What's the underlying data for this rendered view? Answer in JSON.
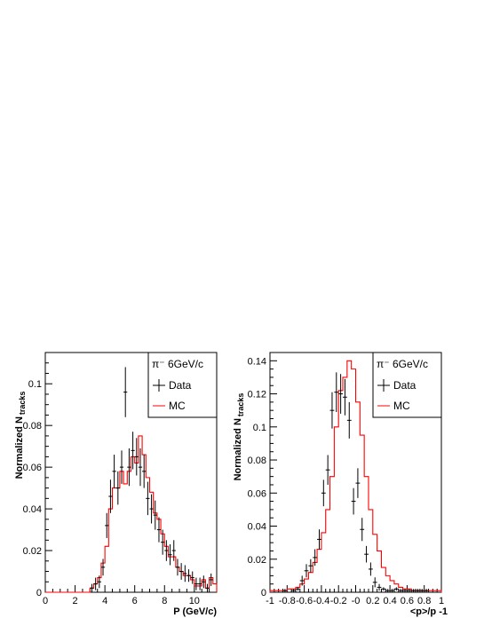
{
  "chart_data": [
    {
      "type": "histogram",
      "title": "",
      "xlabel": "P (GeV/c)",
      "ylabel": "Normalized N",
      "ylabel_sub": "tracks",
      "xlim": [
        0,
        11.5
      ],
      "ylim": [
        0,
        0.115
      ],
      "xticks": [
        0,
        2,
        4,
        6,
        8,
        10
      ],
      "yticks": [
        0,
        0.02,
        0.04,
        0.06,
        0.08,
        0.1
      ],
      "xtick_labels": [
        "0",
        "2",
        "4",
        "6",
        "8",
        "10"
      ],
      "ytick_labels": [
        "0",
        "0.02",
        "0.04",
        "0.06",
        "0.08",
        "0.1"
      ],
      "bin_width": 0.25,
      "legend": {
        "title": "π⁻ 6GeV/c",
        "placement": "top-right",
        "entries": [
          {
            "label": "Data",
            "style": "errorbar",
            "color": "#000000"
          },
          {
            "label": "MC",
            "style": "line",
            "color": "#ff0000"
          }
        ]
      },
      "series": [
        {
          "name": "Data",
          "style": "errorbar",
          "color": "#000000",
          "x": [
            3.125,
            3.375,
            3.625,
            3.875,
            4.125,
            4.375,
            4.625,
            4.875,
            5.125,
            5.375,
            5.625,
            5.875,
            6.125,
            6.375,
            6.625,
            6.875,
            7.125,
            7.375,
            7.625,
            7.875,
            8.125,
            8.375,
            8.625,
            8.875,
            9.125,
            9.375,
            9.625,
            9.875,
            10.125,
            10.375,
            10.625,
            10.875,
            11.125
          ],
          "y": [
            0.002,
            0.004,
            0.005,
            0.012,
            0.032,
            0.046,
            0.058,
            0.05,
            0.06,
            0.096,
            0.06,
            0.068,
            0.065,
            0.06,
            0.058,
            0.045,
            0.04,
            0.037,
            0.03,
            0.024,
            0.02,
            0.018,
            0.02,
            0.012,
            0.01,
            0.009,
            0.008,
            0.007,
            0.004,
            0.004,
            0.005,
            0.002,
            0.006
          ],
          "yerr": [
            0.002,
            0.003,
            0.003,
            0.004,
            0.006,
            0.008,
            0.008,
            0.008,
            0.008,
            0.012,
            0.009,
            0.009,
            0.009,
            0.009,
            0.008,
            0.008,
            0.007,
            0.007,
            0.006,
            0.006,
            0.005,
            0.005,
            0.005,
            0.004,
            0.004,
            0.004,
            0.003,
            0.003,
            0.003,
            0.003,
            0.003,
            0.002,
            0.003
          ]
        },
        {
          "name": "MC",
          "style": "step",
          "color": "#ff0000",
          "bin_edges": [
            3.0,
            3.25,
            3.5,
            3.75,
            4.0,
            4.25,
            4.5,
            4.75,
            5.0,
            5.25,
            5.5,
            5.75,
            6.0,
            6.25,
            6.5,
            6.75,
            7.0,
            7.25,
            7.5,
            7.75,
            8.0,
            8.25,
            8.5,
            8.75,
            9.0,
            9.25,
            9.5,
            9.75,
            10.0,
            10.25,
            10.5,
            10.75,
            11.0,
            11.25,
            11.5
          ],
          "values": [
            0.002,
            0.004,
            0.007,
            0.014,
            0.022,
            0.04,
            0.05,
            0.05,
            0.058,
            0.052,
            0.058,
            0.065,
            0.062,
            0.075,
            0.066,
            0.055,
            0.048,
            0.038,
            0.035,
            0.028,
            0.022,
            0.017,
            0.017,
            0.012,
            0.01,
            0.008,
            0.008,
            0.006,
            0.003,
            0.003,
            0.006,
            0.002,
            0.007,
            0.004
          ]
        }
      ]
    },
    {
      "type": "histogram",
      "title": "",
      "xlabel": "<p>/p -1",
      "ylabel": "Normalized N",
      "ylabel_sub": "tracks",
      "xlim": [
        -1,
        1
      ],
      "ylim": [
        0,
        0.145
      ],
      "xticks": [
        -1,
        -0.8,
        -0.6,
        -0.4,
        -0.2,
        0,
        0.2,
        0.4,
        0.6,
        0.8,
        1
      ],
      "yticks": [
        0,
        0.02,
        0.04,
        0.06,
        0.08,
        0.1,
        0.12,
        0.14
      ],
      "xtick_labels": [
        "-1",
        "-0.8",
        "-0.6",
        "-0.4",
        "-0.2",
        "-0",
        "0.2",
        "0.4",
        "0.6",
        "0.8",
        "1"
      ],
      "ytick_labels": [
        "0",
        "0.02",
        "0.04",
        "0.06",
        "0.08",
        "0.1",
        "0.12",
        "0.14"
      ],
      "bin_width": 0.05,
      "legend": {
        "title": "π⁻ 6GeV/c",
        "placement": "top-right",
        "entries": [
          {
            "label": "Data",
            "style": "errorbar",
            "color": "#000000"
          },
          {
            "label": "MC",
            "style": "line",
            "color": "#ff0000"
          }
        ]
      },
      "series": [
        {
          "name": "Data",
          "style": "errorbar",
          "color": "#000000",
          "x": [
            -0.825,
            -0.725,
            -0.675,
            -0.625,
            -0.575,
            -0.525,
            -0.475,
            -0.425,
            -0.375,
            -0.325,
            -0.275,
            -0.225,
            -0.175,
            -0.125,
            -0.075,
            -0.025,
            0.025,
            0.075,
            0.125,
            0.175,
            0.225,
            0.275,
            0.325,
            0.375,
            0.425,
            0.475,
            0.525,
            0.575,
            0.625,
            0.675,
            0.725,
            0.775,
            0.825
          ],
          "y": [
            0.001,
            0.001,
            0.002,
            0.007,
            0.013,
            0.016,
            0.021,
            0.032,
            0.06,
            0.074,
            0.11,
            0.121,
            0.12,
            0.118,
            0.104,
            0.055,
            0.066,
            0.038,
            0.023,
            0.014,
            0.006,
            0.003,
            0.002,
            0.001,
            0.001,
            0.002,
            0.001,
            0.001,
            0.001,
            0.001,
            0.001,
            0.001,
            0.001
          ],
          "yerr": [
            0.001,
            0.001,
            0.001,
            0.003,
            0.004,
            0.004,
            0.005,
            0.006,
            0.008,
            0.009,
            0.011,
            0.012,
            0.012,
            0.011,
            0.011,
            0.008,
            0.009,
            0.007,
            0.005,
            0.004,
            0.003,
            0.002,
            0.001,
            0.001,
            0.001,
            0.001,
            0.001,
            0.001,
            0.001,
            0.001,
            0.001,
            0.001,
            0.001
          ]
        },
        {
          "name": "MC",
          "style": "step",
          "color": "#ff0000",
          "bin_edges": [
            -1.0,
            -0.95,
            -0.9,
            -0.85,
            -0.8,
            -0.75,
            -0.7,
            -0.65,
            -0.6,
            -0.55,
            -0.5,
            -0.45,
            -0.4,
            -0.35,
            -0.3,
            -0.25,
            -0.2,
            -0.15,
            -0.1,
            -0.05,
            0.0,
            0.05,
            0.1,
            0.15,
            0.2,
            0.25,
            0.3,
            0.35,
            0.4,
            0.45,
            0.5,
            0.55,
            0.6,
            0.65,
            0.7,
            0.75,
            0.8,
            0.85,
            0.9,
            0.95,
            1.0
          ],
          "values": [
            0.001,
            0.001,
            0.001,
            0.001,
            0.002,
            0.002,
            0.003,
            0.005,
            0.008,
            0.012,
            0.018,
            0.026,
            0.036,
            0.05,
            0.07,
            0.1,
            0.122,
            0.13,
            0.14,
            0.135,
            0.115,
            0.095,
            0.07,
            0.05,
            0.035,
            0.025,
            0.015,
            0.01,
            0.007,
            0.005,
            0.003,
            0.002,
            0.002,
            0.001,
            0.001,
            0.001,
            0.001,
            0.001,
            0.001,
            0.001
          ]
        }
      ]
    }
  ]
}
